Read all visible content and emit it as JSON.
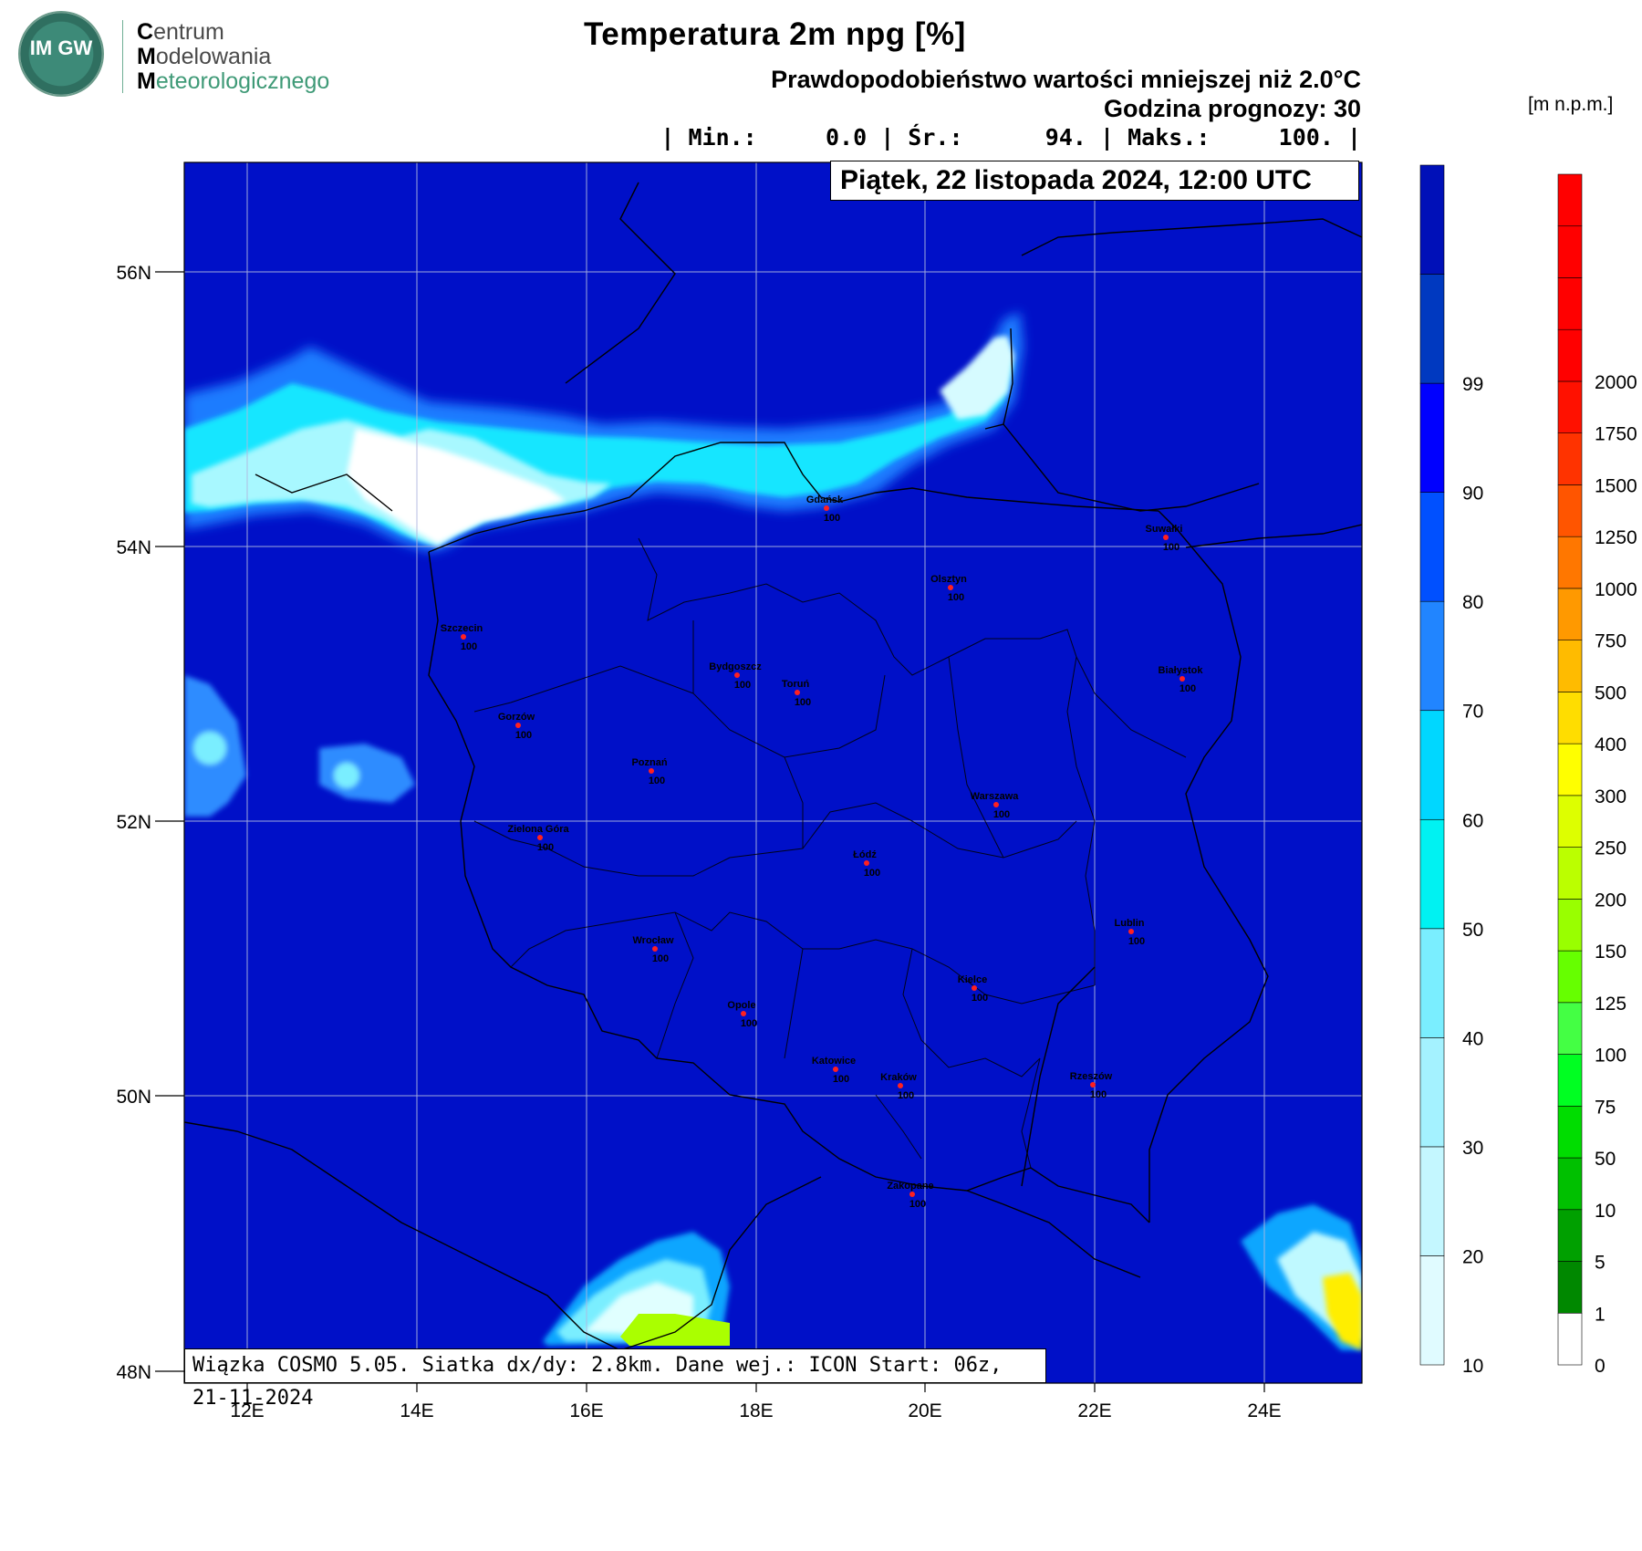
{
  "logo": {
    "badge": "IM GW",
    "lines": [
      "Centrum",
      "Modelowania",
      "Meteorologicznego"
    ]
  },
  "header": {
    "title": "Temperatura 2m npg [%]",
    "subtitle": "Prawdopodobieństwo wartości mniejszej niż 2.0°C",
    "forecast_hour": "Godzina prognozy: 30",
    "stats": "| Min.:     0.0 | Śr.:      94. | Maks.:     100. |",
    "date": "Piątek, 22 listopada 2024, 12:00 UTC"
  },
  "footer": {
    "info": "Wiązka COSMO 5.05. Siatka dx/dy: 2.8km. Dane wej.: ICON Start: 06z, 21-11-2024"
  },
  "axes": {
    "lat_labels": [
      "56N",
      "54N",
      "52N",
      "50N",
      "48N"
    ],
    "lon_labels": [
      "12E",
      "14E",
      "16E",
      "18E",
      "20E",
      "22E",
      "24E"
    ]
  },
  "colorbar_prob": {
    "labels": [
      "10",
      "20",
      "30",
      "40",
      "50",
      "60",
      "70",
      "80",
      "90",
      "99"
    ],
    "colors": [
      "#e0fbff",
      "#c4f7ff",
      "#a4f2ff",
      "#7aeeff",
      "#00f2f2",
      "#00d7ff",
      "#2185ff",
      "#0050ff",
      "#0000ff",
      "#0039c0",
      "#0010b8"
    ]
  },
  "colorbar_height": {
    "unit": "[m n.p.m.]",
    "labels": [
      "0",
      "1",
      "5",
      "10",
      "50",
      "75",
      "100",
      "125",
      "150",
      "200",
      "250",
      "300",
      "400",
      "500",
      "750",
      "1000",
      "1250",
      "1500",
      "1750",
      "2000"
    ],
    "colors": [
      "#ffffff",
      "#008800",
      "#00a000",
      "#00c000",
      "#00dd00",
      "#00ff22",
      "#44ff44",
      "#66ff00",
      "#99ff00",
      "#bbff00",
      "#ddff00",
      "#ffff00",
      "#ffdd00",
      "#ffbb00",
      "#ff9900",
      "#ff7700",
      "#ff5500",
      "#ff3300",
      "#ff1100",
      "#ff0000"
    ]
  },
  "map": {
    "field_color": "#0010c8",
    "cities": [
      {
        "name": "Gdańsk",
        "value": "100"
      },
      {
        "name": "Suwałki",
        "value": "100"
      },
      {
        "name": "Olsztyn",
        "value": "100"
      },
      {
        "name": "Szczecin",
        "value": "100"
      },
      {
        "name": "Bydgoszcz",
        "value": "100"
      },
      {
        "name": "Toruń",
        "value": "100"
      },
      {
        "name": "Białystok",
        "value": "100"
      },
      {
        "name": "Gorzów",
        "value": "100"
      },
      {
        "name": "Poznań",
        "value": "100"
      },
      {
        "name": "Warszawa",
        "value": "100"
      },
      {
        "name": "Zielona Góra",
        "value": "100"
      },
      {
        "name": "Łódź",
        "value": "100"
      },
      {
        "name": "Lublin",
        "value": "100"
      },
      {
        "name": "Wrocław",
        "value": "100"
      },
      {
        "name": "Kielce",
        "value": "100"
      },
      {
        "name": "Opole",
        "value": "100"
      },
      {
        "name": "Katowice",
        "value": "100"
      },
      {
        "name": "Kraków",
        "value": "100"
      },
      {
        "name": "Rzeszów",
        "value": "100"
      },
      {
        "name": "Zakopane",
        "value": "100"
      }
    ]
  }
}
